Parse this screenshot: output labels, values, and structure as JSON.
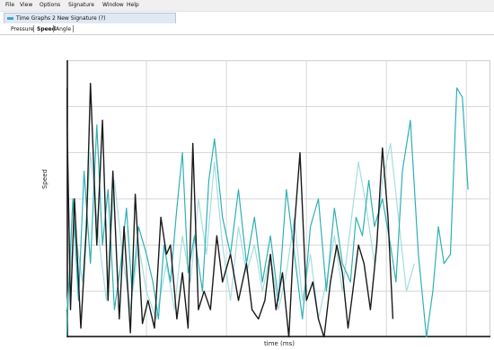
{
  "menu": [
    "File",
    "View",
    "Options",
    "Signature",
    "Window",
    "Help"
  ],
  "document_tab": {
    "title": "Time Graphs 2 New Signature (?)"
  },
  "subtabs": [
    {
      "label": "Pressure",
      "active": false
    },
    {
      "label": "Speed",
      "active": true
    },
    {
      "label": "Angle",
      "active": false
    }
  ],
  "chart_data": {
    "type": "line",
    "title": "",
    "xlabel": "time (ms)",
    "ylabel": "Speed",
    "ylim": [
      0,
      3
    ],
    "xlim": [
      0,
      5.3
    ],
    "grid": true,
    "series": [
      {
        "color": "#1a1a1a",
        "x": [
          0.0,
          0.05,
          0.1,
          0.18,
          0.25,
          0.3,
          0.38,
          0.45,
          0.52,
          0.58,
          0.66,
          0.72,
          0.8,
          0.86,
          0.95,
          1.02,
          1.1,
          1.18,
          1.25,
          1.3,
          1.38,
          1.45,
          1.52,
          1.58,
          1.65,
          1.72,
          1.8,
          1.88,
          1.95,
          2.05,
          2.15,
          2.25,
          2.32,
          2.4,
          2.48,
          2.55,
          2.62,
          2.7,
          2.78,
          2.85,
          2.92,
          3.0,
          3.08,
          3.15,
          3.22,
          3.3,
          3.38,
          3.45,
          3.52,
          3.58,
          3.65,
          3.72,
          3.8,
          3.88,
          3.95,
          4.02,
          4.08
        ],
        "values": [
          2.7,
          0.3,
          1.5,
          0.1,
          1.2,
          2.75,
          1.0,
          2.35,
          0.4,
          1.8,
          0.2,
          1.2,
          0.05,
          1.55,
          0.15,
          0.4,
          0.1,
          1.3,
          0.9,
          1.0,
          0.2,
          0.7,
          0.1,
          2.1,
          0.3,
          0.5,
          0.3,
          1.1,
          0.6,
          0.9,
          0.4,
          0.8,
          0.3,
          0.2,
          0.4,
          0.9,
          0.3,
          0.7,
          0.0,
          1.2,
          2.0,
          0.4,
          0.6,
          0.2,
          0.0,
          0.6,
          1.0,
          0.7,
          0.1,
          0.5,
          1.0,
          0.8,
          0.3,
          1.0,
          2.05,
          1.3,
          0.2
        ]
      },
      {
        "color": "#2fb0b5",
        "x": [
          0.0,
          0.08,
          0.15,
          0.22,
          0.3,
          0.38,
          0.45,
          0.52,
          0.6,
          0.68,
          0.75,
          0.82,
          0.9,
          1.0,
          1.08,
          1.15,
          1.22,
          1.3,
          1.38,
          1.45,
          1.52,
          1.6,
          1.7,
          1.78,
          1.85,
          1.95,
          2.05,
          2.15,
          2.25,
          2.35,
          2.45,
          2.55,
          2.65,
          2.75,
          2.85,
          2.95,
          3.05,
          3.15,
          3.25,
          3.35,
          3.45,
          3.55,
          3.62,
          3.7,
          3.78,
          3.85,
          3.95,
          4.05,
          4.12,
          4.2,
          4.3,
          4.4,
          4.5,
          4.58,
          4.65,
          4.72,
          4.8,
          4.88,
          4.95,
          5.02
        ],
        "values": [
          0.0,
          1.5,
          0.4,
          1.8,
          0.8,
          2.3,
          1.0,
          1.6,
          0.3,
          0.8,
          1.4,
          0.5,
          1.2,
          0.9,
          0.6,
          0.2,
          1.0,
          0.6,
          1.4,
          2.0,
          0.7,
          1.1,
          0.5,
          1.7,
          2.15,
          1.3,
          0.9,
          1.6,
          0.8,
          1.3,
          0.6,
          1.1,
          0.4,
          1.6,
          0.9,
          0.2,
          1.2,
          1.5,
          0.5,
          1.4,
          0.8,
          0.6,
          1.3,
          1.1,
          1.7,
          1.2,
          1.5,
          1.0,
          0.6,
          1.8,
          2.35,
          0.9,
          0.0,
          0.5,
          1.2,
          0.8,
          0.9,
          2.7,
          2.6,
          1.6
        ]
      },
      {
        "color": "#a6dde0",
        "x": [
          0.0,
          0.1,
          0.2,
          0.3,
          0.4,
          0.5,
          0.6,
          0.7,
          0.8,
          0.9,
          1.0,
          1.12,
          1.25,
          1.35,
          1.45,
          1.55,
          1.65,
          1.75,
          1.85,
          1.95,
          2.05,
          2.15,
          2.25,
          2.35,
          2.45,
          2.55,
          2.65,
          2.75,
          2.85,
          2.95,
          3.05,
          3.15,
          3.25,
          3.35,
          3.45,
          3.55,
          3.65,
          3.75,
          3.85,
          3.95,
          4.05,
          4.15,
          4.25,
          4.35
        ],
        "values": [
          0.3,
          1.2,
          0.6,
          2.0,
          1.1,
          0.4,
          1.7,
          0.9,
          0.3,
          1.0,
          0.5,
          0.2,
          0.8,
          0.3,
          1.1,
          0.6,
          1.5,
          0.9,
          1.9,
          1.0,
          0.4,
          1.2,
          0.7,
          1.0,
          0.5,
          0.9,
          0.3,
          0.7,
          1.3,
          0.4,
          0.9,
          0.2,
          0.6,
          1.1,
          0.5,
          1.2,
          1.9,
          1.4,
          0.8,
          1.7,
          2.1,
          1.3,
          0.5,
          0.8
        ]
      }
    ]
  }
}
